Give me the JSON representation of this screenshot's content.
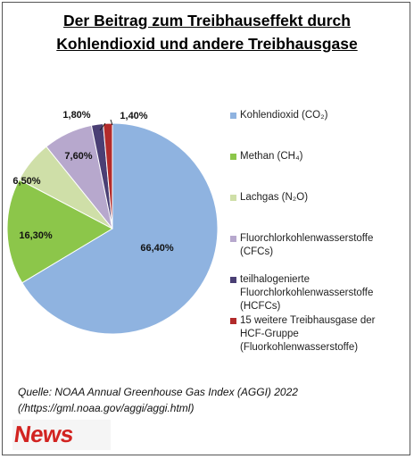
{
  "chart_data": {
    "type": "pie",
    "title_line1": "Der Beitrag zum Treibhauseffekt durch",
    "title_line2": "Kohlendioxid  und andere Treibhausgase",
    "slices": [
      {
        "label": "Kohlendioxid  (CO₂)",
        "value": 66.4,
        "display": "66,40%",
        "color": "#8fb3e0"
      },
      {
        "label": "Methan (CH₄)",
        "value": 16.3,
        "display": "16,30%",
        "color": "#8cc64a"
      },
      {
        "label": "Lachgas (N₂O)",
        "value": 6.5,
        "display": "6,50%",
        "color": "#cfdfa8"
      },
      {
        "label": "Fluorchlorkohlenwasserstoffe (CFCs)",
        "value": 7.6,
        "display": "7,60%",
        "color": "#b7a8cd"
      },
      {
        "label": "teilhalogenierte Fluorchlorkohlenwasserstoffe (HCFCs)",
        "value": 1.8,
        "display": "1,80%",
        "color": "#4a3f74"
      },
      {
        "label": "15 weitere Treibhausgase der HCF-Gruppe (Fluorkohlenwasserstoffe)",
        "value": 1.4,
        "display": "1,40%",
        "color": "#b22b2b"
      }
    ],
    "legend_position": "right"
  },
  "legend_lines": [
    [
      "Kohlendioxid  (CO₂)"
    ],
    [
      "Methan (CH₄)"
    ],
    [
      "Lachgas (N₂O)"
    ],
    [
      "Fluorchlorkohlenwasserstoffe",
      "(CFCs)"
    ],
    [
      "teilhalogenierte",
      "Fluorchlorkohlenwasserstoffe",
      "(HCFCs)"
    ],
    [
      "15 weitere Treibhausgase der",
      "HCF-Gruppe",
      "(Fluorkohlenwasserstoffe)"
    ]
  ],
  "source": {
    "line1": "Quelle: NOAA Annual Greenhouse Gas Index (AGGI) 2022",
    "line2": "(/https://gml.noaa.gov/aggi/aggi.html)"
  },
  "logo": {
    "text": "News"
  }
}
